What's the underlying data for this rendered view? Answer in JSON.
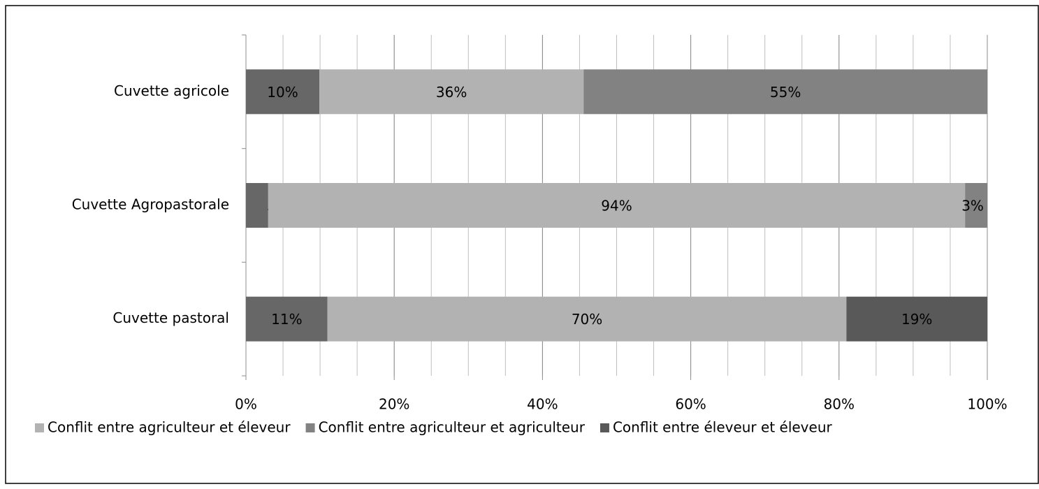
{
  "chart_data": {
    "type": "bar",
    "orientation": "horizontal",
    "stacked": "percent",
    "categories": [
      "Cuvette agricole",
      "Cuvette Agropastorale",
      "Cuvette pastoral"
    ],
    "series": [
      {
        "name": "Conflit entre agriculteur et éleveur",
        "color": "#b2b2b2",
        "values": [
          36,
          94,
          70
        ],
        "value_labels": [
          "36%",
          "94%",
          "70%"
        ]
      },
      {
        "name": "Conflit entre agriculteur et agriculteur",
        "color": "#828282",
        "colors": [
          "#828282",
          "#828282",
          "#595959"
        ],
        "values": [
          55,
          3,
          19
        ],
        "value_labels": [
          "55%",
          "3%",
          "19%"
        ]
      },
      {
        "name": "Conflit entre éleveur et éleveur",
        "color": "#595959",
        "colors": [
          "#676767",
          "#676767",
          "#676767"
        ],
        "values": [
          10,
          3,
          11
        ],
        "value_labels": [
          "10%",
          "3%",
          "11%"
        ]
      }
    ],
    "xlim": [
      0,
      100
    ],
    "xticks": [
      {
        "value": 0,
        "label": "0%"
      },
      {
        "value": 20,
        "label": "20%"
      },
      {
        "value": 40,
        "label": "40%"
      },
      {
        "value": 60,
        "label": "60%"
      },
      {
        "value": 80,
        "label": "80%"
      },
      {
        "value": 100,
        "label": "100%"
      }
    ],
    "minor_grid_step": 5,
    "grid": true,
    "legend": "bottom"
  }
}
